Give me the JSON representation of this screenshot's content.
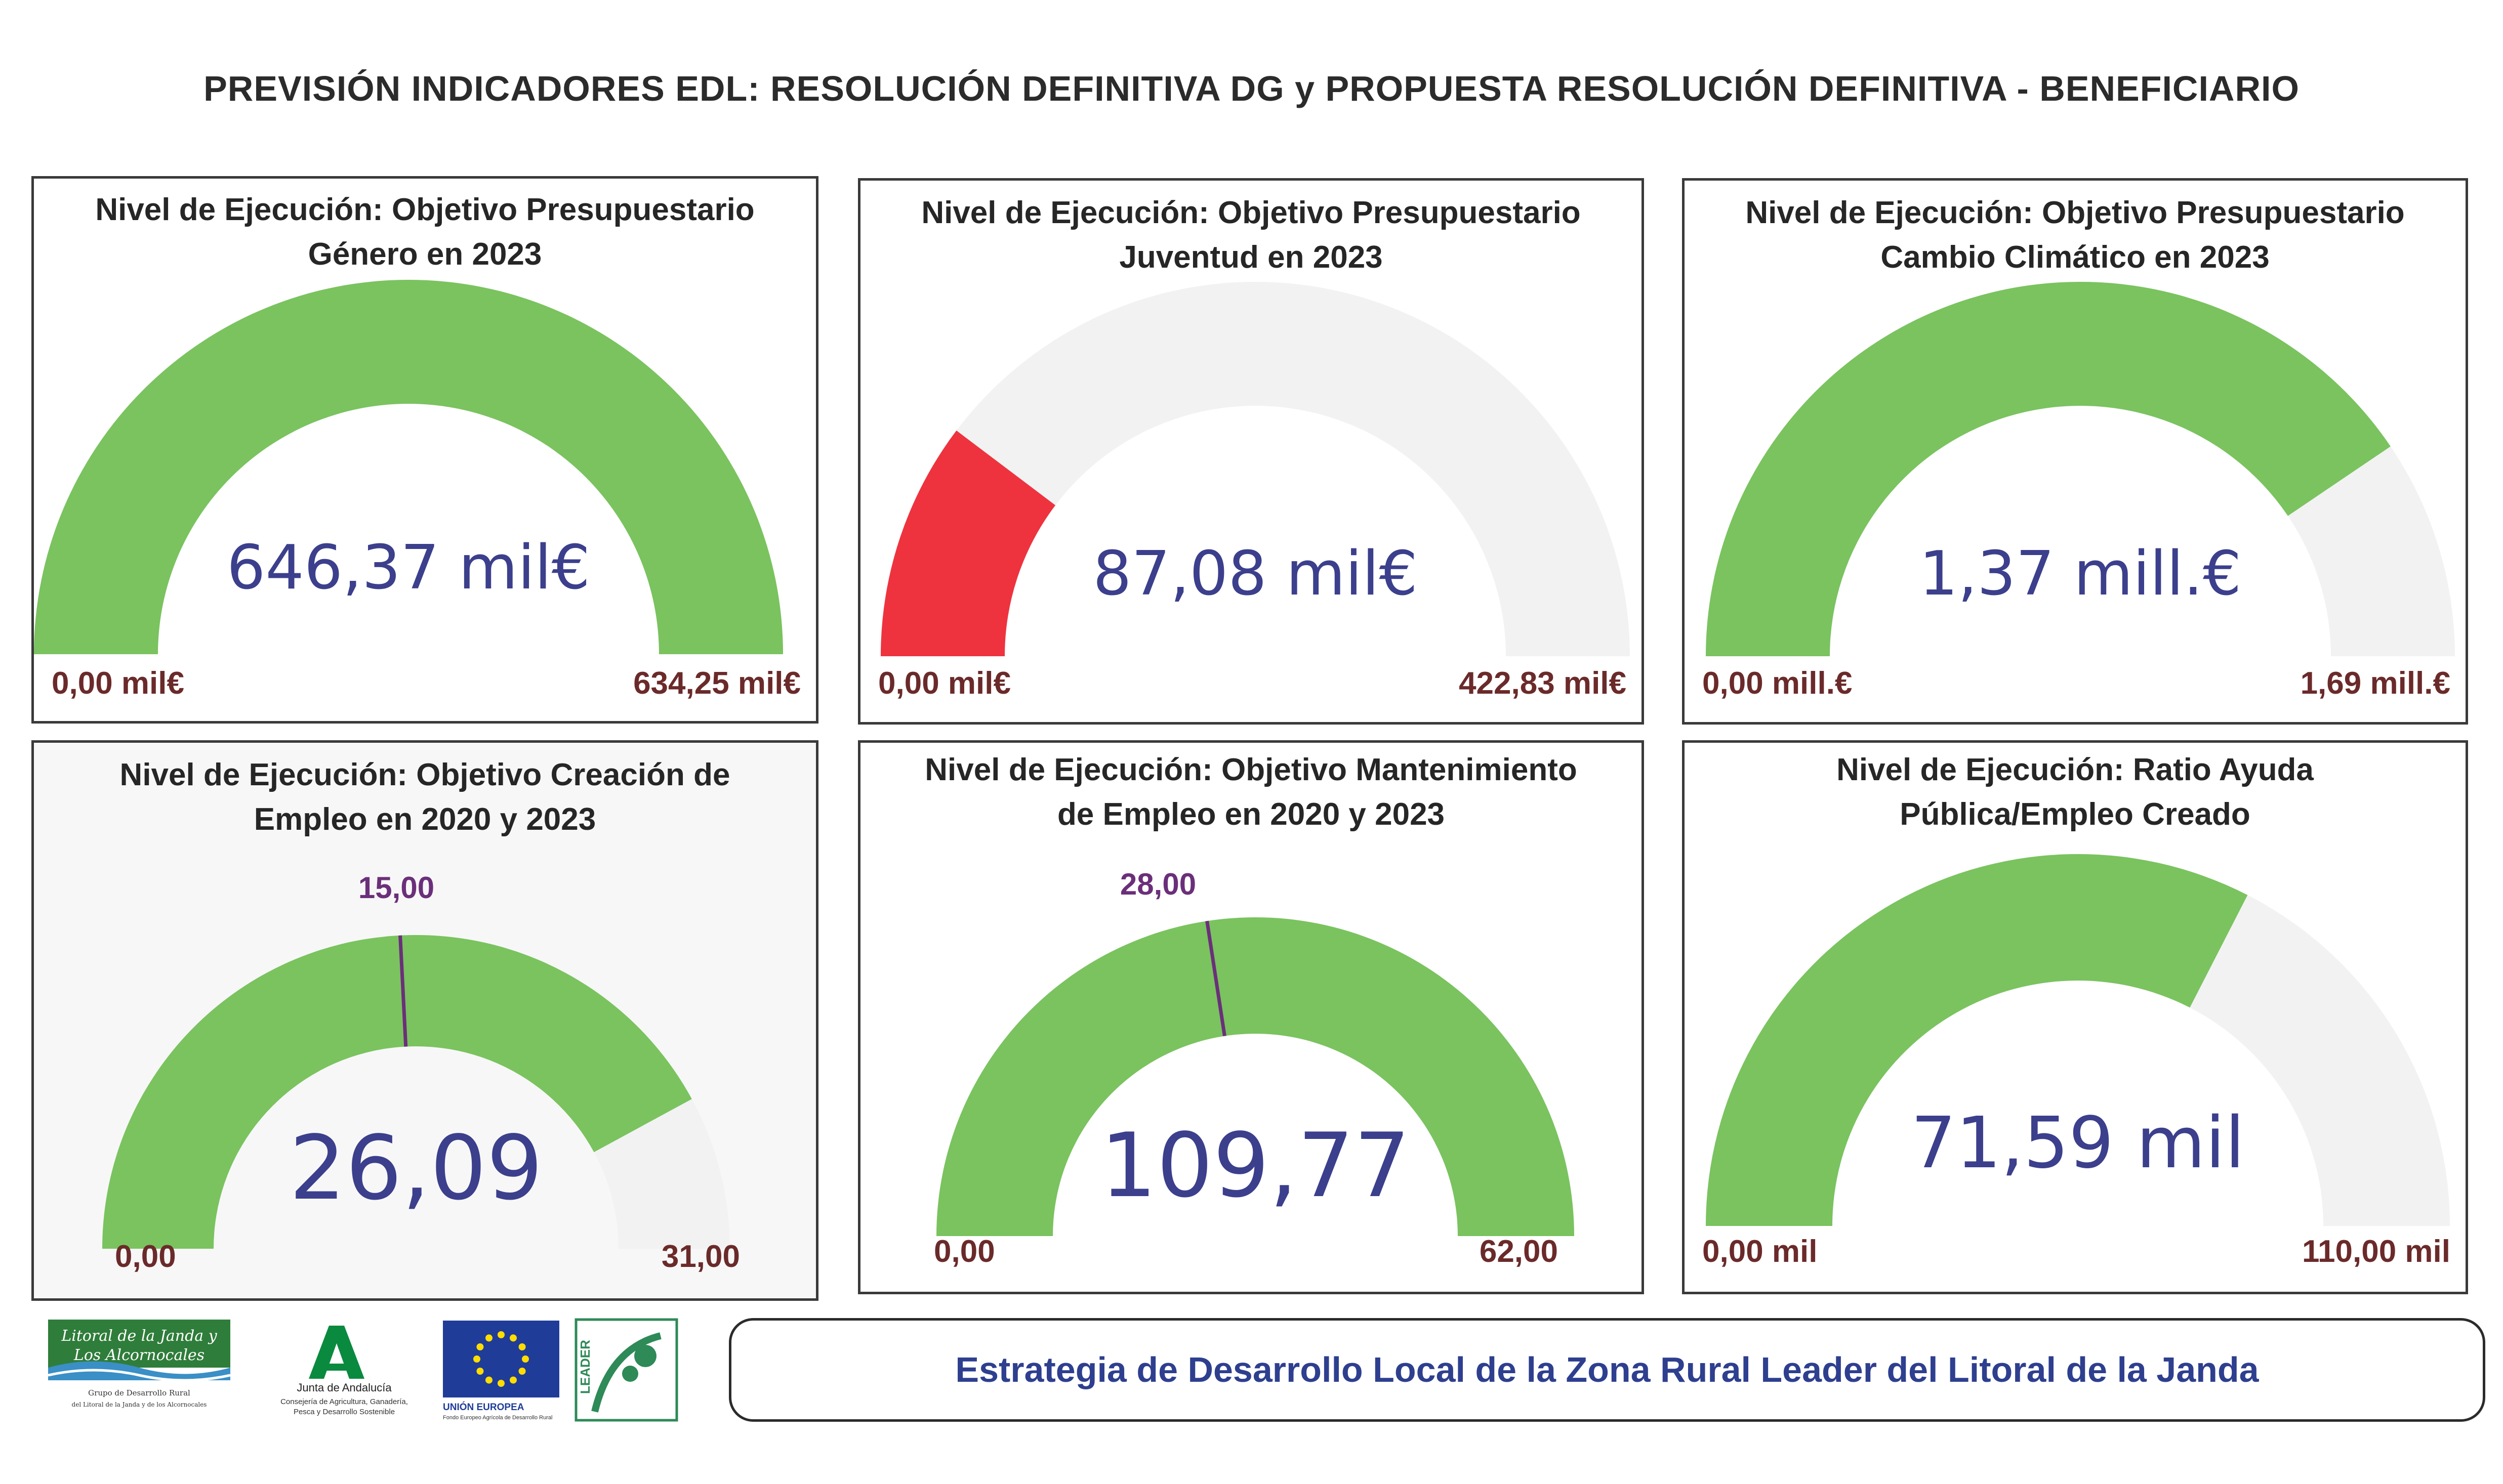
{
  "title": "PREVISIÓN INDICADORES EDL: RESOLUCIÓN DEFINITIVA DG y PROPUESTA RESOLUCIÓN DEFINITIVA - BENEFICIARIO",
  "colors": {
    "green": "#7ac35f",
    "red": "#ee333e",
    "track": "#f2f2f2",
    "value_text": "#3b3f8c",
    "min_max_text": "#6b2a2a",
    "target_line": "#6b2f7a",
    "footer_text": "#2e3f8f"
  },
  "chart_data": [
    {
      "type": "gauge",
      "title_lines": [
        "Nivel de Ejecución: Objetivo Presupuestario",
        "Género en 2023"
      ],
      "value": 646.37,
      "value_label": "646,37 mil€",
      "min": 0,
      "max": 634.25,
      "min_label": "0,00 mil€",
      "max_label": "634,25 mil€",
      "fill_color": "green"
    },
    {
      "type": "gauge",
      "title_lines": [
        "Nivel de Ejecución: Objetivo Presupuestario",
        "Juventud en 2023"
      ],
      "value": 87.08,
      "value_label": "87,08 mil€",
      "min": 0,
      "max": 422.83,
      "min_label": "0,00 mil€",
      "max_label": "422,83 mil€",
      "fill_color": "red"
    },
    {
      "type": "gauge",
      "title_lines": [
        "Nivel de Ejecución: Objetivo Presupuestario",
        "Cambio Climático en 2023"
      ],
      "value": 1.37,
      "value_label": "1,37 mill.€",
      "min": 0,
      "max": 1.69,
      "min_label": "0,00 mill.€",
      "max_label": "1,69 mill.€",
      "fill_color": "green"
    },
    {
      "type": "gauge",
      "title_lines": [
        "Nivel de Ejecución: Objetivo Creación de",
        "Empleo en 2020 y 2023"
      ],
      "value": 26.09,
      "value_label": "26,09",
      "min": 0,
      "max": 31,
      "min_label": "0,00",
      "max_label": "31,00",
      "target": 15,
      "target_label": "15,00",
      "fill_color": "green"
    },
    {
      "type": "gauge",
      "title_lines": [
        "Nivel de Ejecución: Objetivo Mantenimiento",
        "de Empleo en 2020 y 2023"
      ],
      "value": 109.77,
      "value_label": "109,77",
      "min": 0,
      "max": 62,
      "min_label": "0,00",
      "max_label": "62,00",
      "target": 28,
      "target_label": "28,00",
      "fill_color": "green"
    },
    {
      "type": "gauge",
      "title_lines": [
        "Nivel de Ejecución: Ratio Ayuda",
        "Pública/Empleo Creado"
      ],
      "value": 71.59,
      "value_label": "71,59 mil",
      "min": 0,
      "max": 110,
      "min_label": "0,00 mil",
      "max_label": "110,00 mil",
      "fill_color": "green"
    }
  ],
  "footer": {
    "text": "Estrategia de Desarrollo Local de la Zona Rural Leader del Litoral de la Janda"
  },
  "logos": {
    "litoral": {
      "line1": "Litoral de la Janda y",
      "line2": "Los Alcornocales",
      "sub1": "Grupo de Desarrollo Rural",
      "sub2": "del Litoral de la Janda y de los Alcornocales"
    },
    "junta": {
      "name": "Junta de Andalucía",
      "sub1": "Consejería de Agricultura, Ganadería,",
      "sub2": "Pesca y Desarrollo Sostenible"
    },
    "eu": {
      "name": "UNIÓN EUROPEA",
      "sub": "Fondo Europeo Agrícola de Desarrollo Rural"
    },
    "leader": {
      "name": "LEADER"
    }
  }
}
